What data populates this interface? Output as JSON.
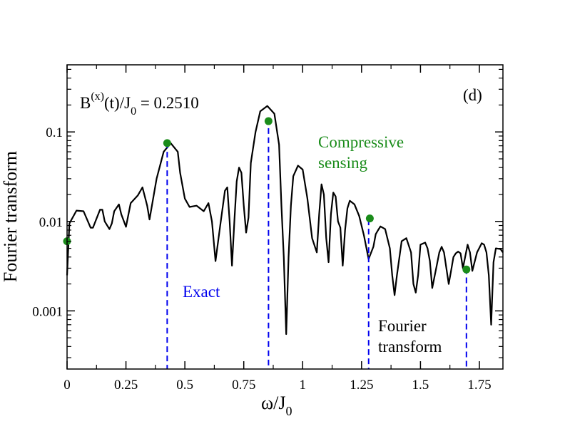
{
  "chart_data": {
    "type": "line",
    "panel_label": "(d)",
    "annotation": {
      "main": "B",
      "sup": "(x)",
      "mid": "(t)/J",
      "sub": "0",
      "tail": " = 0.2510"
    },
    "xlabel": {
      "main": "ω/J",
      "sub": "0"
    },
    "ylabel": "Fourier transform",
    "xlim": [
      0,
      1.85
    ],
    "ylim_log10": [
      -3.65,
      -0.25
    ],
    "yscale": "log",
    "x_ticks": [
      {
        "value": 0,
        "label": "0"
      },
      {
        "value": 0.25,
        "label": "0.25"
      },
      {
        "value": 0.5,
        "label": "0.5"
      },
      {
        "value": 0.75,
        "label": "0.75"
      },
      {
        "value": 1.0,
        "label": "1"
      },
      {
        "value": 1.25,
        "label": "1.25"
      },
      {
        "value": 1.5,
        "label": "1.5"
      },
      {
        "value": 1.75,
        "label": "1.75"
      }
    ],
    "y_ticks": [
      {
        "value": 0.1,
        "label": "0.1"
      },
      {
        "value": 0.01,
        "label": "0.01"
      },
      {
        "value": 0.001,
        "label": "0.001"
      }
    ],
    "series": [
      {
        "name": "Fourier transform",
        "label_lines": [
          "Fourier",
          "transform"
        ],
        "color": "#000000",
        "x": [
          0.0,
          0.01,
          0.04,
          0.07,
          0.1,
          0.11,
          0.14,
          0.15,
          0.16,
          0.18,
          0.19,
          0.2,
          0.22,
          0.23,
          0.25,
          0.27,
          0.3,
          0.32,
          0.34,
          0.35,
          0.38,
          0.41,
          0.44,
          0.47,
          0.48,
          0.5,
          0.52,
          0.55,
          0.58,
          0.6,
          0.615,
          0.63,
          0.65,
          0.67,
          0.68,
          0.69,
          0.7,
          0.71,
          0.72,
          0.73,
          0.74,
          0.75,
          0.76,
          0.77,
          0.78,
          0.8,
          0.82,
          0.85,
          0.88,
          0.9,
          0.91,
          0.92,
          0.93,
          0.94,
          0.95,
          0.96,
          0.98,
          1.0,
          1.02,
          1.04,
          1.06,
          1.07,
          1.08,
          1.09,
          1.1,
          1.11,
          1.12,
          1.13,
          1.14,
          1.15,
          1.16,
          1.17,
          1.18,
          1.19,
          1.2,
          1.22,
          1.24,
          1.26,
          1.28,
          1.3,
          1.31,
          1.32,
          1.33,
          1.35,
          1.37,
          1.38,
          1.39,
          1.4,
          1.42,
          1.44,
          1.46,
          1.47,
          1.48,
          1.49,
          1.5,
          1.52,
          1.53,
          1.54,
          1.55,
          1.57,
          1.58,
          1.59,
          1.6,
          1.62,
          1.63,
          1.64,
          1.65,
          1.66,
          1.67,
          1.68,
          1.7,
          1.71,
          1.72,
          1.74,
          1.76,
          1.77,
          1.78,
          1.79,
          1.8,
          1.81,
          1.82,
          1.84,
          1.85
        ],
        "y": [
          0.0025,
          0.0095,
          0.0132,
          0.013,
          0.0085,
          0.0085,
          0.0135,
          0.0135,
          0.01,
          0.0082,
          0.0095,
          0.013,
          0.0155,
          0.012,
          0.0087,
          0.016,
          0.0195,
          0.024,
          0.015,
          0.0105,
          0.03,
          0.06,
          0.075,
          0.06,
          0.035,
          0.018,
          0.0145,
          0.015,
          0.013,
          0.016,
          0.01,
          0.0036,
          0.009,
          0.022,
          0.024,
          0.01,
          0.0032,
          0.01,
          0.028,
          0.04,
          0.035,
          0.015,
          0.0075,
          0.011,
          0.045,
          0.1,
          0.17,
          0.195,
          0.16,
          0.072,
          0.015,
          0.004,
          0.00055,
          0.004,
          0.015,
          0.032,
          0.042,
          0.038,
          0.018,
          0.0065,
          0.0045,
          0.012,
          0.026,
          0.02,
          0.0065,
          0.0035,
          0.012,
          0.021,
          0.019,
          0.01,
          0.0085,
          0.0032,
          0.008,
          0.014,
          0.017,
          0.0155,
          0.0115,
          0.007,
          0.0038,
          0.0052,
          0.0072,
          0.008,
          0.0088,
          0.0082,
          0.005,
          0.0025,
          0.0015,
          0.0025,
          0.006,
          0.0065,
          0.0045,
          0.002,
          0.0016,
          0.0025,
          0.0055,
          0.0058,
          0.005,
          0.0036,
          0.0018,
          0.0033,
          0.0045,
          0.0052,
          0.0045,
          0.002,
          0.0028,
          0.004,
          0.0044,
          0.0046,
          0.0044,
          0.003,
          0.0055,
          0.0045,
          0.0028,
          0.0045,
          0.0057,
          0.0055,
          0.0045,
          0.0025,
          0.0007,
          0.0035,
          0.005,
          0.0049,
          0.0045
        ]
      },
      {
        "name": "Exact",
        "color": "#0000ee",
        "style": "dashed",
        "x": [
          0.425,
          0.855,
          1.28,
          1.695
        ],
        "y": [
          0.076,
          0.14,
          0.0105,
          0.003
        ]
      },
      {
        "name": "Compressive sensing",
        "label_lines": [
          "Compressive",
          "sensing"
        ],
        "color": "#1a8c1a",
        "style": "markers",
        "x": [
          0.0,
          0.425,
          0.855,
          1.285,
          1.695
        ],
        "y": [
          0.006,
          0.075,
          0.132,
          0.0108,
          0.0029
        ]
      }
    ]
  }
}
